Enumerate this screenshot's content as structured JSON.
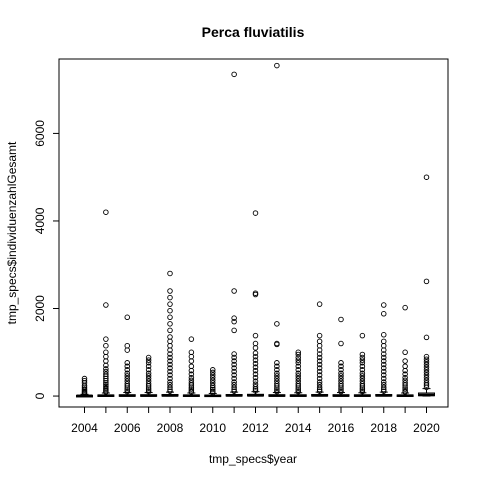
{
  "chart_data": {
    "type": "boxplot",
    "title": "Perca fluviatilis",
    "xlabel": "tmp_specs$year",
    "ylabel": "tmp_specs$individuenzahlGesamt",
    "categories": [
      "2004",
      "2005",
      "2006",
      "2007",
      "2008",
      "2009",
      "2010",
      "2011",
      "2012",
      "2013",
      "2014",
      "2015",
      "2016",
      "2017",
      "2018",
      "2019",
      "2020"
    ],
    "x_tick_labels": [
      "2004",
      "2006",
      "2008",
      "2010",
      "2012",
      "2014",
      "2016",
      "2018",
      "2020"
    ],
    "y_ticks": [
      0,
      2000,
      4000,
      6000
    ],
    "ylim": [
      -250,
      7700
    ],
    "grid": false,
    "boxes": [
      {
        "year": "2004",
        "min": 0,
        "q1": 2,
        "median": 6,
        "q3": 14,
        "max": 40,
        "outliers": [
          60,
          80,
          100,
          130,
          160,
          200,
          240,
          300,
          350,
          400
        ]
      },
      {
        "year": "2005",
        "min": 0,
        "q1": 3,
        "median": 9,
        "q3": 25,
        "max": 70,
        "outliers": [
          90,
          120,
          150,
          180,
          220,
          260,
          300,
          350,
          400,
          450,
          500,
          560,
          620,
          700,
          800,
          900,
          1000,
          1150,
          1300,
          2080,
          4200
        ]
      },
      {
        "year": "2006",
        "min": 0,
        "q1": 3,
        "median": 10,
        "q3": 30,
        "max": 80,
        "outliers": [
          100,
          140,
          180,
          230,
          280,
          340,
          400,
          460,
          520,
          600,
          680,
          760,
          1050,
          1150,
          1800
        ]
      },
      {
        "year": "2007",
        "min": 0,
        "q1": 3,
        "median": 10,
        "q3": 30,
        "max": 80,
        "outliers": [
          100,
          140,
          180,
          230,
          280,
          340,
          400,
          460,
          520,
          600,
          680,
          760,
          820,
          880
        ]
      },
      {
        "year": "2008",
        "min": 0,
        "q1": 4,
        "median": 12,
        "q3": 35,
        "max": 90,
        "outliers": [
          110,
          150,
          200,
          260,
          320,
          400,
          480,
          560,
          640,
          720,
          800,
          880,
          960,
          1050,
          1150,
          1250,
          1350,
          1500,
          1650,
          1800,
          1950,
          2100,
          2250,
          2400,
          2800
        ]
      },
      {
        "year": "2009",
        "min": 0,
        "q1": 3,
        "median": 9,
        "q3": 25,
        "max": 70,
        "outliers": [
          90,
          120,
          160,
          200,
          250,
          300,
          360,
          420,
          500,
          580,
          680,
          800,
          900,
          1000,
          1300
        ]
      },
      {
        "year": "2010",
        "min": 0,
        "q1": 3,
        "median": 8,
        "q3": 22,
        "max": 60,
        "outliers": [
          80,
          110,
          150,
          190,
          240,
          300,
          360,
          420,
          480,
          540,
          600
        ]
      },
      {
        "year": "2011",
        "min": 0,
        "q1": 4,
        "median": 12,
        "q3": 35,
        "max": 90,
        "outliers": [
          110,
          150,
          200,
          260,
          320,
          400,
          480,
          560,
          640,
          720,
          800,
          880,
          960,
          1500,
          1700,
          1780,
          2400,
          7350
        ]
      },
      {
        "year": "2012",
        "min": 0,
        "q1": 4,
        "median": 14,
        "q3": 40,
        "max": 100,
        "outliers": [
          120,
          160,
          210,
          270,
          340,
          420,
          500,
          580,
          660,
          740,
          820,
          900,
          980,
          1100,
          1200,
          1380,
          2320,
          2350,
          4180
        ]
      },
      {
        "year": "2013",
        "min": 0,
        "q1": 3,
        "median": 10,
        "q3": 30,
        "max": 80,
        "outliers": [
          100,
          140,
          180,
          230,
          280,
          340,
          400,
          460,
          520,
          600,
          680,
          760,
          1180,
          1200,
          1650,
          7550
        ]
      },
      {
        "year": "2014",
        "min": 0,
        "q1": 3,
        "median": 10,
        "q3": 28,
        "max": 75,
        "outliers": [
          100,
          140,
          180,
          230,
          280,
          340,
          400,
          460,
          520,
          600,
          680,
          760,
          820,
          880,
          950,
          1000
        ]
      },
      {
        "year": "2015",
        "min": 0,
        "q1": 4,
        "median": 12,
        "q3": 35,
        "max": 90,
        "outliers": [
          110,
          150,
          200,
          260,
          320,
          400,
          480,
          560,
          640,
          720,
          800,
          880,
          960,
          1050,
          1150,
          1250,
          1380,
          2100
        ]
      },
      {
        "year": "2016",
        "min": 0,
        "q1": 3,
        "median": 10,
        "q3": 30,
        "max": 80,
        "outliers": [
          100,
          140,
          180,
          230,
          280,
          340,
          400,
          460,
          520,
          600,
          680,
          760,
          1200,
          1750
        ]
      },
      {
        "year": "2017",
        "min": 0,
        "q1": 3,
        "median": 10,
        "q3": 28,
        "max": 75,
        "outliers": [
          100,
          140,
          180,
          230,
          280,
          340,
          400,
          460,
          520,
          600,
          680,
          760,
          820,
          880,
          950,
          1380
        ]
      },
      {
        "year": "2018",
        "min": 0,
        "q1": 4,
        "median": 12,
        "q3": 35,
        "max": 90,
        "outliers": [
          110,
          150,
          200,
          260,
          320,
          400,
          480,
          560,
          640,
          720,
          800,
          880,
          960,
          1050,
          1150,
          1250,
          1400,
          1880,
          2080
        ]
      },
      {
        "year": "2019",
        "min": 0,
        "q1": 3,
        "median": 9,
        "q3": 25,
        "max": 70,
        "outliers": [
          90,
          120,
          160,
          200,
          250,
          300,
          360,
          420,
          500,
          580,
          680,
          800,
          1000,
          2020
        ]
      },
      {
        "year": "2020",
        "min": 0,
        "q1": 8,
        "median": 25,
        "q3": 70,
        "max": 170,
        "outliers": [
          200,
          250,
          300,
          360,
          420,
          480,
          540,
          600,
          660,
          720,
          780,
          840,
          900,
          1340,
          2620,
          5000
        ]
      }
    ]
  }
}
